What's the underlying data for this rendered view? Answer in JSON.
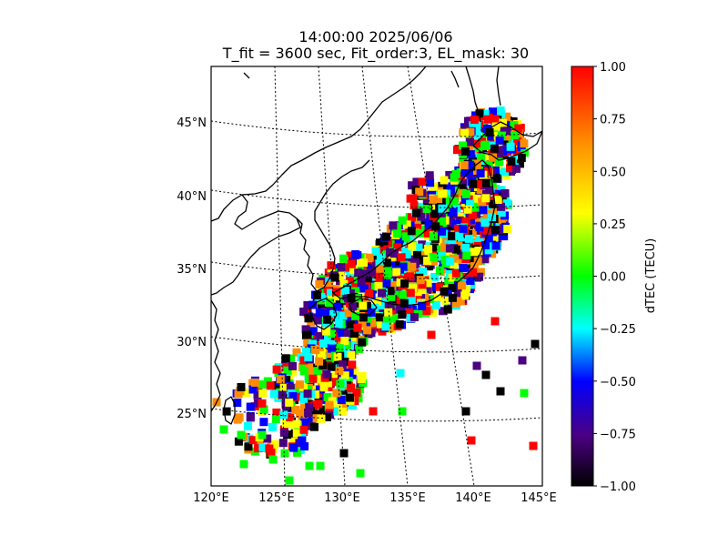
{
  "title": {
    "line1": "14:00:00 2025/06/06",
    "line2": "T_fit = 3600 sec, Fit_order:3, EL_mask: 30"
  },
  "map": {
    "lon_range": [
      120,
      145
    ],
    "lat_range": [
      20,
      49
    ],
    "lon_ticks": [
      "120°E",
      "125°E",
      "130°E",
      "135°E",
      "140°E",
      "145°E"
    ],
    "lat_ticks": [
      "25°N",
      "30°N",
      "35°N",
      "40°N",
      "45°N"
    ],
    "graticule_style": "dotted",
    "coastline_color": "#000000"
  },
  "colorbar": {
    "label": "dTEC (TECU)",
    "range": [
      -1.0,
      1.0
    ],
    "ticks": [
      "1.00",
      "0.75",
      "0.50",
      "0.25",
      "0.00",
      "−0.25",
      "−0.50",
      "−0.75",
      "−1.00"
    ],
    "colormap": [
      "#000000",
      "#4b0082",
      "#0000ff",
      "#00ffff",
      "#00ff00",
      "#ffff00",
      "#ff8c00",
      "#ff0000"
    ]
  }
}
